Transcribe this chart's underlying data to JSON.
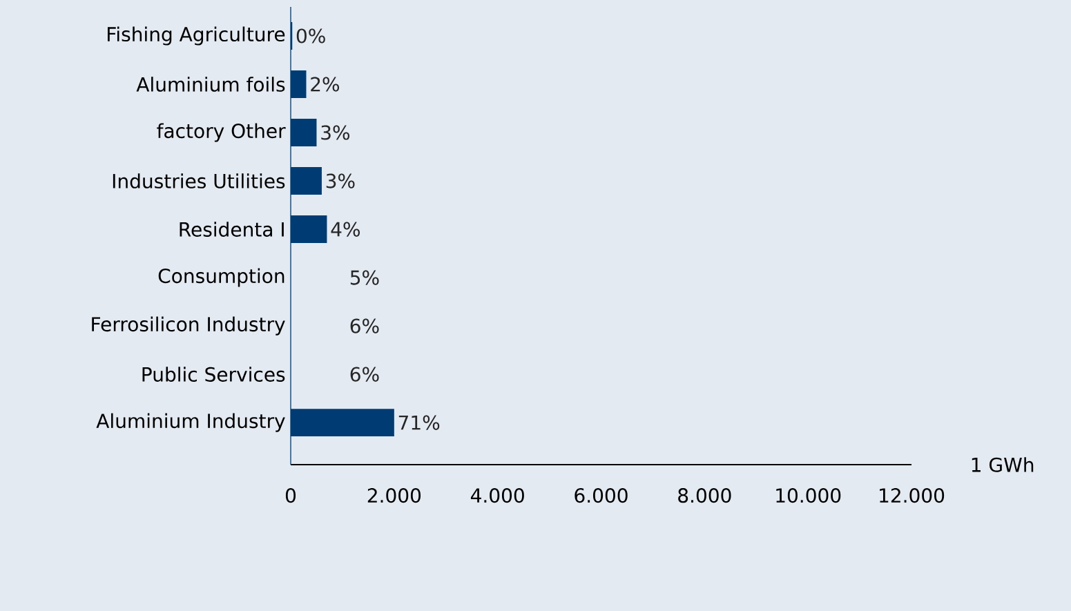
{
  "chart_data": {
    "type": "bar",
    "orientation": "horizontal",
    "xlabel": "1 GWh",
    "categories": [
      "Fishing Agriculture",
      "Aluminium foils",
      "factory Other",
      "Industries Utilities",
      "Residenta I",
      "Consumption",
      "Ferrosilicon Industry",
      "Public Services",
      "Aluminium Industry"
    ],
    "values": [
      30,
      300,
      500,
      600,
      700,
      null,
      null,
      null,
      2000
    ],
    "annotations": [
      {
        "text": "0%",
        "x": 30,
        "y": "Fishing Agriculture"
      },
      {
        "text": "2%",
        "x": 300,
        "y": "Aluminium foils"
      },
      {
        "text": "3%",
        "x": 500,
        "y": "factory Other"
      },
      {
        "text": "3%",
        "x": 600,
        "y": "Industries Utilities"
      },
      {
        "text": "4%",
        "x": 700,
        "y": "Residenta I"
      },
      "5%",
      "6%",
      "6%",
      {
        "text": "71%",
        "x": 2000,
        "y": "Aluminium Industry"
      }
    ],
    "color": "#003c74",
    "xlim": [
      0,
      12000
    ],
    "xticks": [
      0,
      {
        "value": 2000,
        "label": "2.000"
      },
      {
        "value": 4000,
        "label": "4.000"
      },
      {
        "value": 6000,
        "label": "6.000"
      },
      {
        "value": 8000,
        "label": "8.000"
      },
      {
        "value": 10000,
        "label": "10.000"
      },
      {
        "value": 12000,
        "label": "12.000"
      }
    ],
    "grid": false
  }
}
